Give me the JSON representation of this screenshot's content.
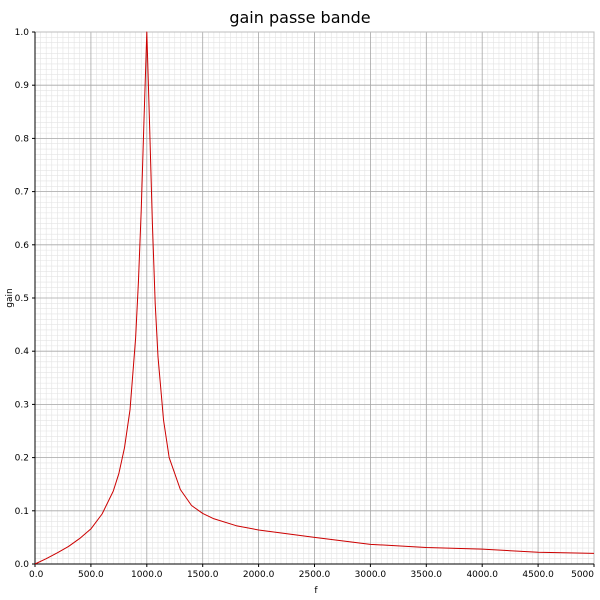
{
  "chart_data": {
    "type": "line",
    "title": "gain passe bande",
    "xlabel": "f",
    "ylabel": "gain",
    "xlim": [
      0,
      5000
    ],
    "ylim": [
      0,
      1.0
    ],
    "grid": true,
    "x_ticks": [
      0,
      500,
      1000,
      1500,
      2000,
      2500,
      3000,
      3500,
      4000,
      4500,
      5000
    ],
    "x_tick_labels": [
      "0.0",
      "500.0",
      "1000.0",
      "1500.0",
      "2000.0",
      "2500.0",
      "3000.0",
      "3500.0",
      "4000.0",
      "4500.0",
      "5000"
    ],
    "y_ticks": [
      0,
      0.1,
      0.2,
      0.3,
      0.4,
      0.5,
      0.6,
      0.7,
      0.8,
      0.9,
      1.0
    ],
    "y_tick_labels": [
      "0.0",
      "0.1",
      "0.2",
      "0.3",
      "0.4",
      "0.5",
      "0.6",
      "0.7",
      "0.8",
      "0.9",
      "1.0"
    ],
    "series": [
      {
        "color": "#cc0000",
        "x": [
          0,
          100,
          200,
          300,
          400,
          500,
          600,
          700,
          750,
          800,
          850,
          900,
          925,
          950,
          975,
          990,
          1000,
          1010,
          1025,
          1050,
          1075,
          1100,
          1150,
          1200,
          1300,
          1400,
          1500,
          1600,
          1800,
          2000,
          2500,
          3000,
          3500,
          4000,
          4500,
          5000
        ],
        "y": [
          0,
          0.01,
          0.021,
          0.033,
          0.048,
          0.066,
          0.094,
          0.137,
          0.17,
          0.218,
          0.29,
          0.425,
          0.53,
          0.664,
          0.835,
          0.933,
          1.0,
          0.931,
          0.825,
          0.64,
          0.49,
          0.39,
          0.27,
          0.2,
          0.14,
          0.11,
          0.095,
          0.085,
          0.072,
          0.064,
          0.05,
          0.037,
          0.031,
          0.028,
          0.022,
          0.02
        ]
      }
    ]
  }
}
